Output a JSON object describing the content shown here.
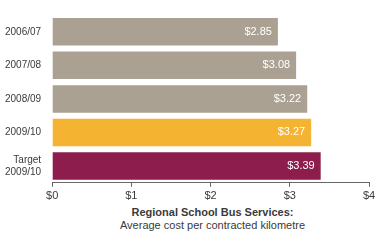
{
  "chart_data": {
    "type": "bar",
    "orientation": "horizontal",
    "title": "Regional School Bus Services:",
    "subtitle": "Average cost per contracted kilometre",
    "categories": [
      "2006/07",
      "2007/08",
      "2008/09",
      "2009/10",
      "Target 2009/10"
    ],
    "values": [
      2.85,
      3.08,
      3.22,
      3.27,
      3.39
    ],
    "value_labels": [
      "$2.85",
      "$3.08",
      "$3.22",
      "$3.27",
      "$3.39"
    ],
    "colors": [
      "#aaa193",
      "#aaa193",
      "#aaa193",
      "#f4b431",
      "#8c1d4c"
    ],
    "xlim": [
      0,
      4
    ],
    "xticks": [
      {
        "value": 0,
        "label": "$0"
      },
      {
        "value": 1,
        "label": "$1"
      },
      {
        "value": 2,
        "label": "$2"
      },
      {
        "value": 3,
        "label": "$3"
      },
      {
        "value": 4,
        "label": "$4"
      }
    ],
    "grid": false,
    "data_labels": true
  }
}
